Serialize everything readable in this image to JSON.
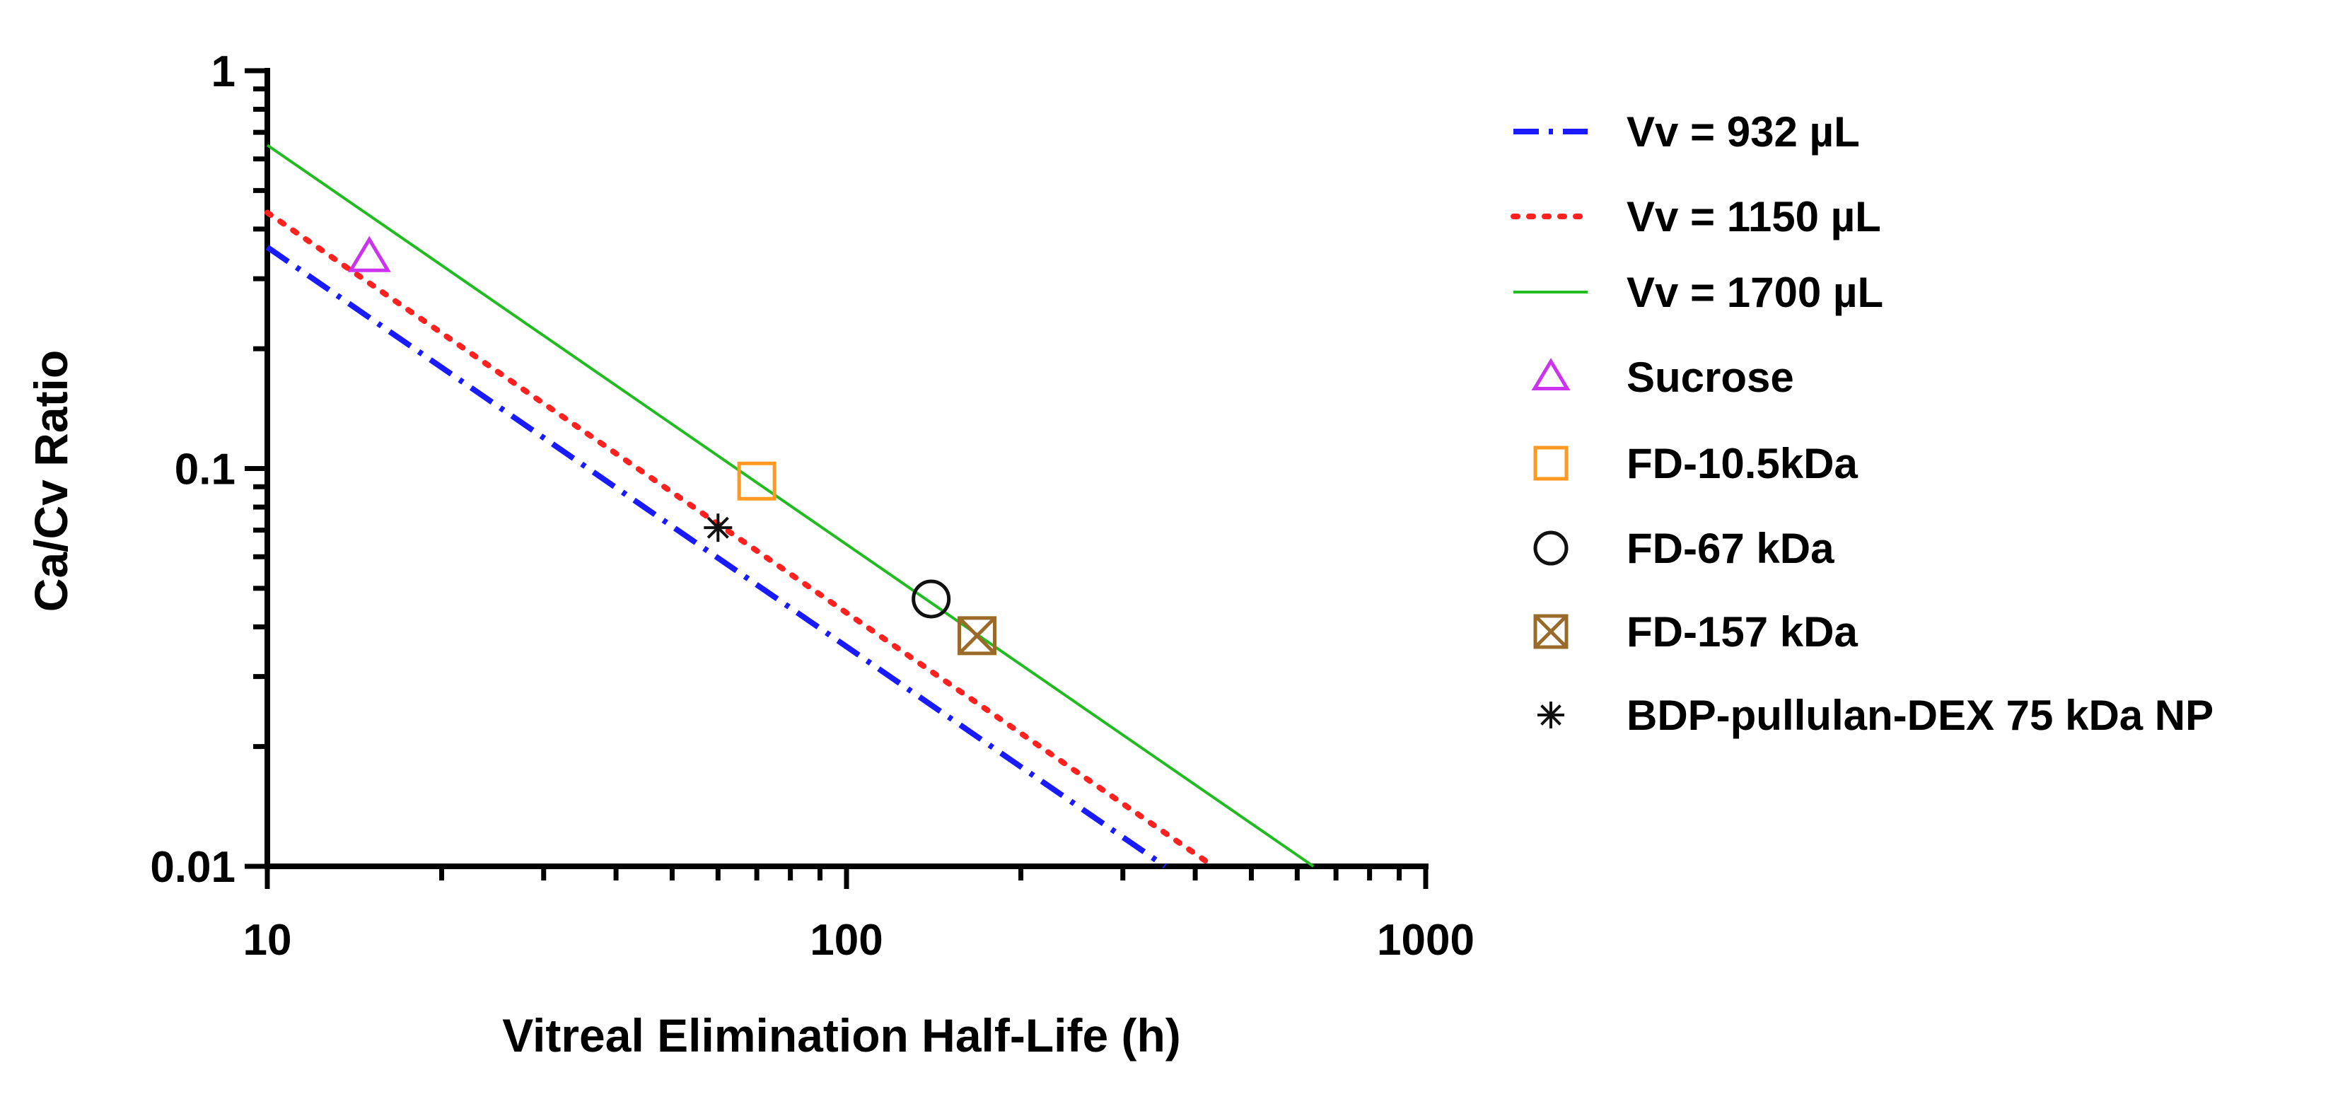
{
  "chart_data": {
    "type": "line",
    "title": "",
    "xlabel": "Vitreal Elimination Half-Life (h)",
    "ylabel": "Ca/Cv Ratio",
    "xscale": "log",
    "yscale": "log",
    "xlim": [
      10,
      1000
    ],
    "ylim": [
      0.01,
      1
    ],
    "x_ticks": [
      {
        "value": 10,
        "label": "10"
      },
      {
        "value": 100,
        "label": "100"
      },
      {
        "value": 1000,
        "label": "1000"
      }
    ],
    "y_ticks": [
      {
        "value": 0.01,
        "label": "0.01"
      },
      {
        "value": 0.1,
        "label": "0.1"
      },
      {
        "value": 1,
        "label": "1"
      }
    ],
    "grid": false,
    "legend_position": "right",
    "lines": [
      {
        "name": "Vv = 932 µL",
        "style": "dash-dot",
        "color": "#1a1aff",
        "x": [
          10,
          355
        ],
        "y": [
          0.36,
          0.01
        ]
      },
      {
        "name": "Vv = 1150 µL",
        "style": "dotted",
        "color": "#ff2020",
        "x": [
          10,
          430
        ],
        "y": [
          0.44,
          0.01
        ]
      },
      {
        "name": "Vv = 1700 µL",
        "style": "solid",
        "color": "#22bb22",
        "x": [
          10,
          640
        ],
        "y": [
          0.65,
          0.01
        ]
      }
    ],
    "points": [
      {
        "name": "Sucrose",
        "marker": "triangle",
        "color": "#cc33ee",
        "x": 15,
        "y": 0.34
      },
      {
        "name": "FD-10.5kDa",
        "marker": "square",
        "color": "#ff9922",
        "x": 70,
        "y": 0.093
      },
      {
        "name": "FD-67 kDa",
        "marker": "circle",
        "color": "#111111",
        "x": 140,
        "y": 0.047
      },
      {
        "name": "FD-157 kDa",
        "marker": "square-x",
        "color": "#9a6a2a",
        "x": 168,
        "y": 0.038
      },
      {
        "name": "BDP-pullulan-DEX 75 kDa NP",
        "marker": "asterisk",
        "color": "#111111",
        "x": 60,
        "y": 0.071
      }
    ]
  }
}
